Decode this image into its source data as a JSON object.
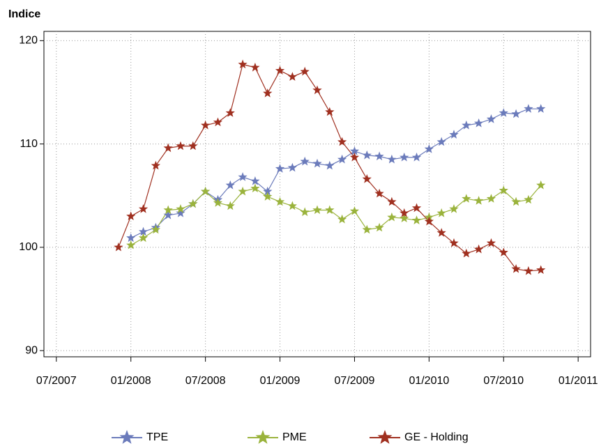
{
  "chart_data": {
    "type": "line",
    "title": "Indice",
    "x": [
      "12/2007",
      "01/2008",
      "02/2008",
      "03/2008",
      "04/2008",
      "05/2008",
      "06/2008",
      "07/2008",
      "08/2008",
      "09/2008",
      "10/2008",
      "11/2008",
      "12/2008",
      "01/2009",
      "02/2009",
      "03/2009",
      "04/2009",
      "05/2009",
      "06/2009",
      "07/2009",
      "08/2009",
      "09/2009",
      "10/2009",
      "11/2009",
      "12/2009",
      "01/2010",
      "02/2010",
      "03/2010",
      "04/2010",
      "05/2010",
      "06/2010",
      "07/2010",
      "08/2010",
      "09/2010",
      "10/2010"
    ],
    "series": [
      {
        "name": "TPE",
        "color": "#6b7bbb",
        "values": [
          null,
          100.9,
          101.5,
          101.9,
          103.1,
          103.3,
          104.2,
          105.4,
          104.6,
          106.0,
          106.8,
          106.4,
          105.4,
          107.6,
          107.7,
          108.3,
          108.1,
          107.9,
          108.5,
          109.3,
          108.9,
          108.8,
          108.5,
          108.7,
          108.7,
          109.5,
          110.2,
          110.9,
          111.8,
          112.0,
          112.4,
          113.0,
          112.9,
          113.4,
          113.4
        ]
      },
      {
        "name": "PME",
        "color": "#9ab33c",
        "values": [
          null,
          100.2,
          100.9,
          101.7,
          103.6,
          103.7,
          104.2,
          105.4,
          104.3,
          104.0,
          105.4,
          105.7,
          104.9,
          104.4,
          104.0,
          103.4,
          103.6,
          103.6,
          102.7,
          103.5,
          101.7,
          101.9,
          102.9,
          102.8,
          102.6,
          102.9,
          103.3,
          103.7,
          104.7,
          104.5,
          104.7,
          105.5,
          104.4,
          104.6,
          106.0
        ]
      },
      {
        "name": "GE - Holding",
        "color": "#a03020",
        "values": [
          100,
          103.0,
          103.7,
          107.9,
          109.6,
          109.8,
          109.8,
          111.8,
          112.1,
          113.0,
          117.7,
          117.4,
          114.9,
          117.1,
          116.5,
          117.0,
          115.2,
          113.1,
          110.2,
          108.7,
          106.6,
          105.2,
          104.4,
          103.3,
          103.8,
          102.5,
          101.4,
          100.4,
          99.4,
          99.8,
          100.4,
          99.5,
          97.9,
          97.7,
          97.8
        ]
      }
    ],
    "xlim": [
      "06/2007",
      "02/2011"
    ],
    "xticks": [
      "07/2007",
      "01/2008",
      "07/2008",
      "01/2009",
      "07/2009",
      "01/2010",
      "07/2010",
      "01/2011"
    ],
    "ylim": [
      89.4,
      120.9
    ],
    "yticks": [
      90,
      100,
      110,
      120
    ],
    "grid": true,
    "legend": "bottom"
  }
}
